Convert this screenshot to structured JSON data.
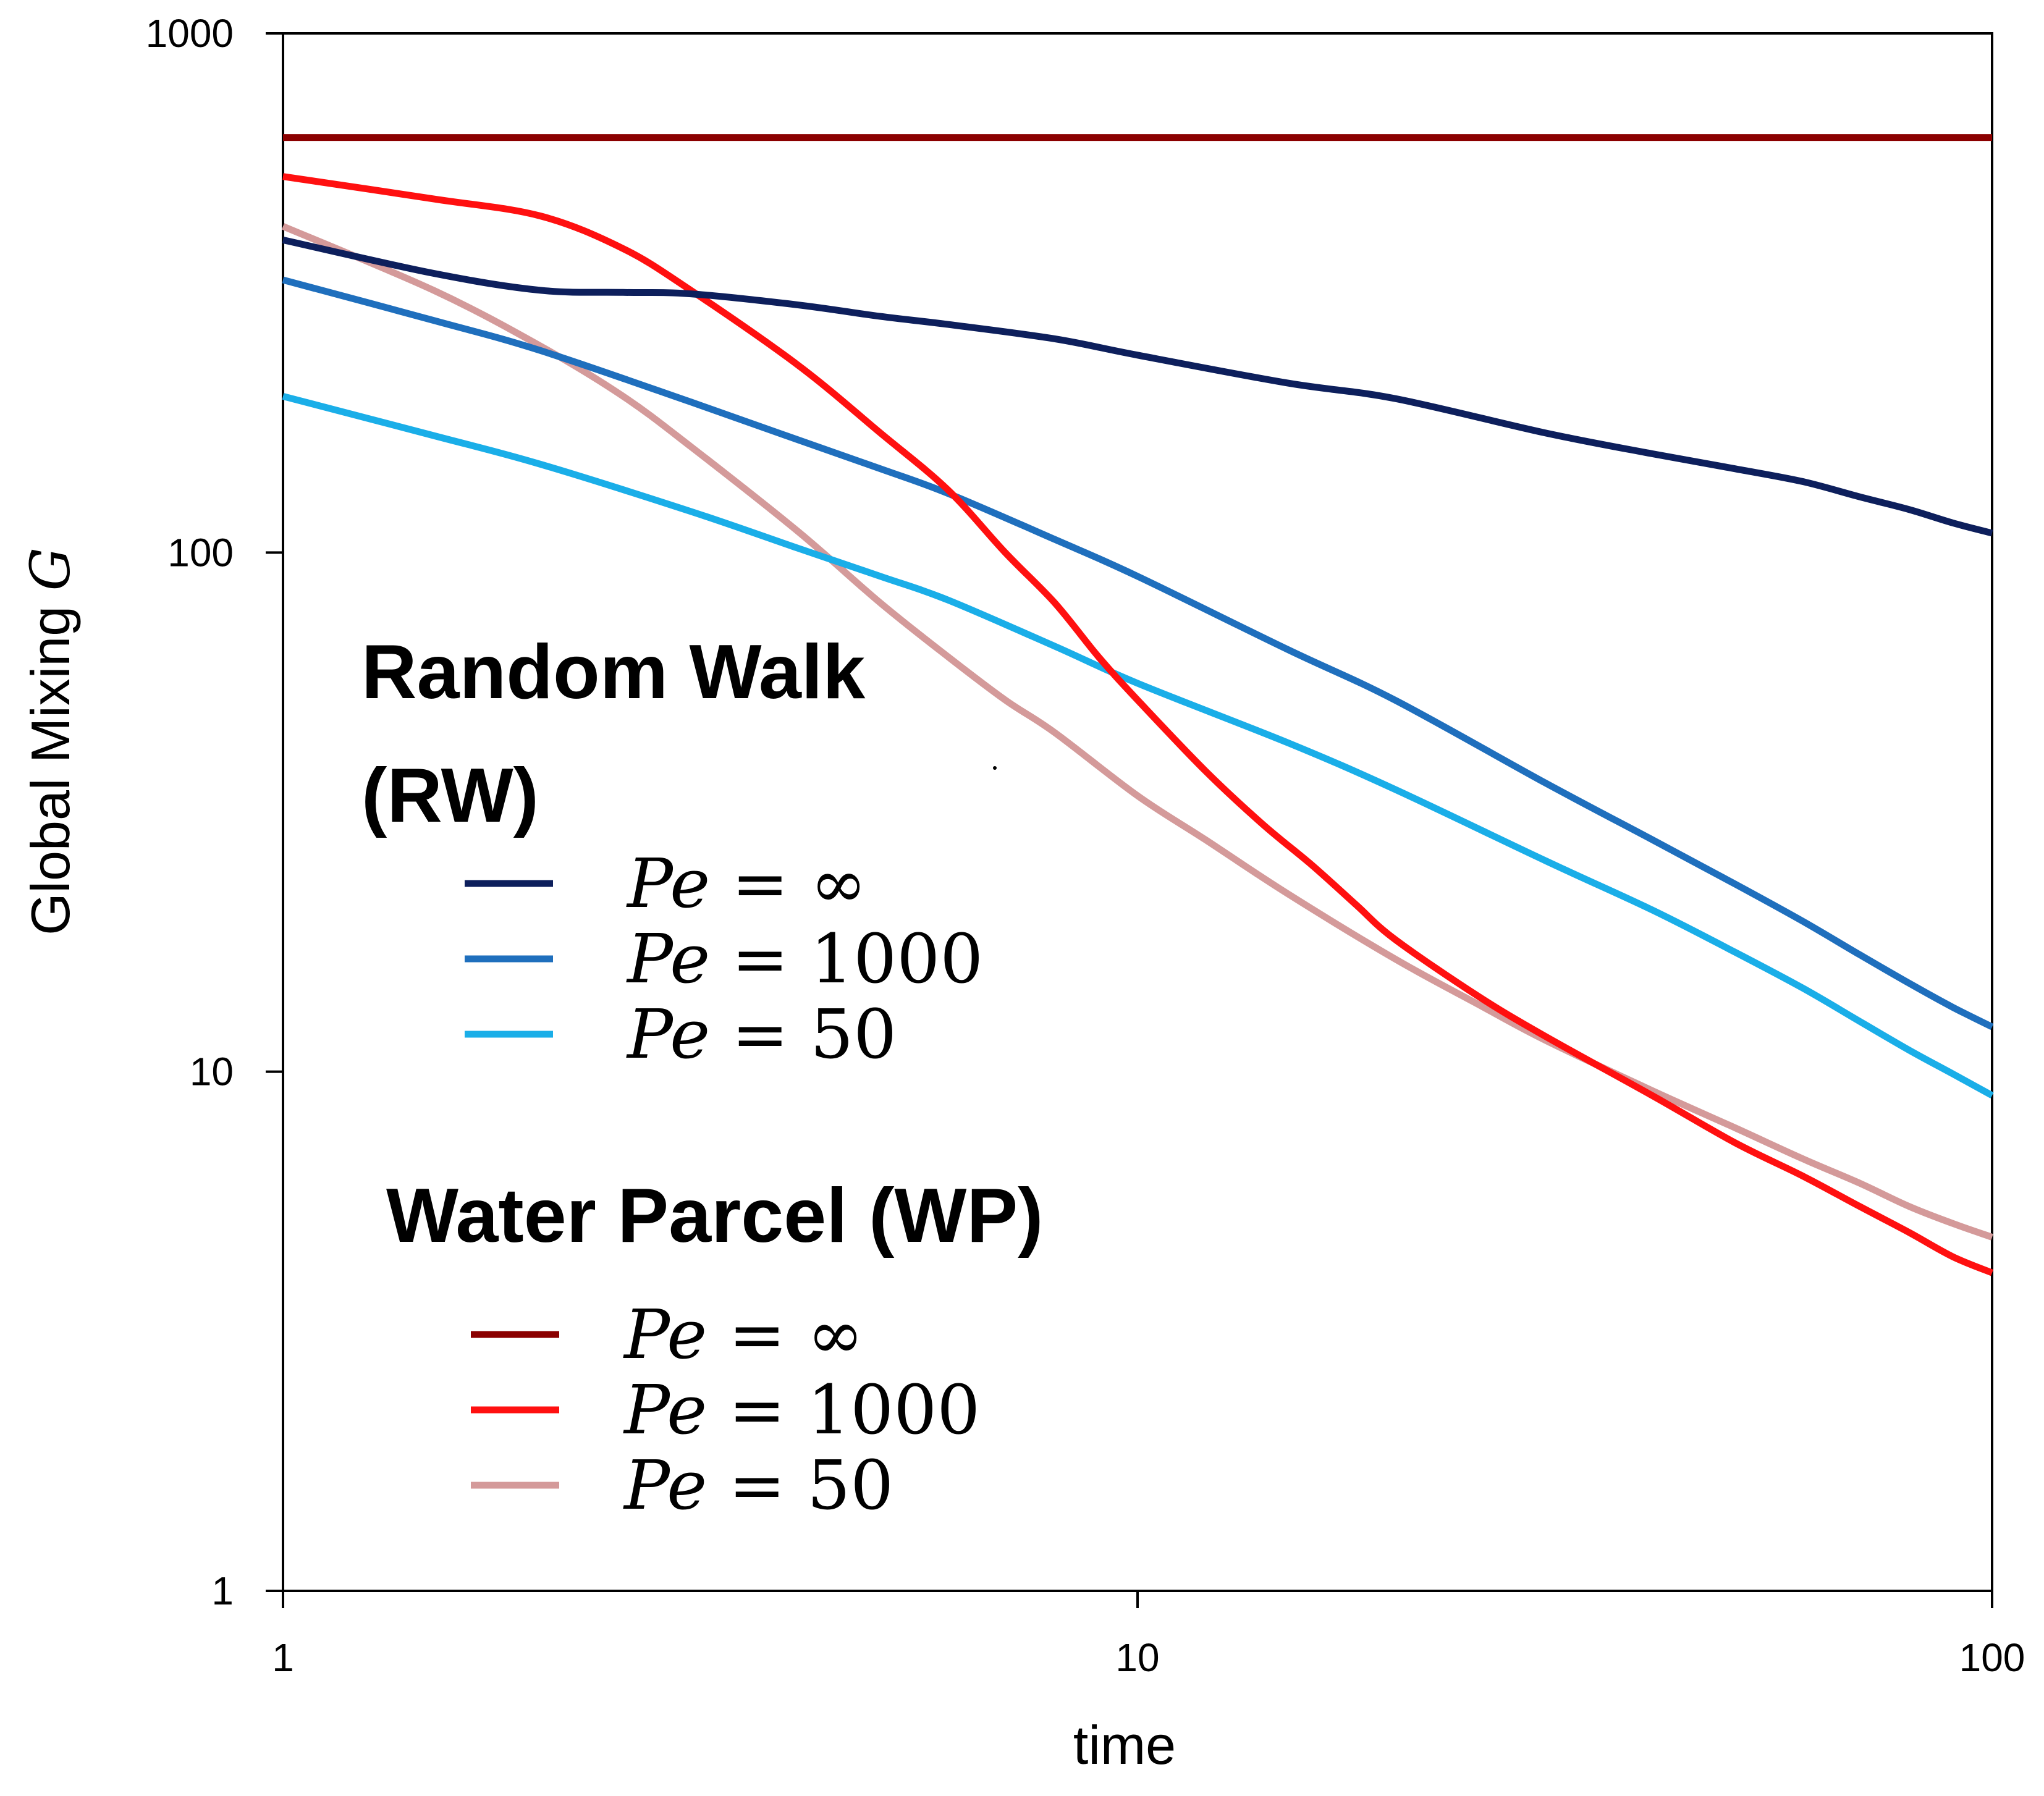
{
  "chart_data": {
    "type": "line",
    "xscale": "log",
    "yscale": "log",
    "xlabel": "time",
    "ylabel_text": "Global Mixing ",
    "ylabel_symbol": "G",
    "xlim": [
      1,
      100
    ],
    "ylim": [
      1,
      1000
    ],
    "x_ticks": [
      "1",
      "10",
      "100"
    ],
    "y_ticks": [
      "1",
      "10",
      "100",
      "1000"
    ],
    "legend_groups": [
      {
        "title_line1": "Random Walk",
        "title_line2": "(RW)",
        "entries": [
          {
            "var": "Pe",
            "eq": " = ",
            "value": "∞",
            "color": "#0d1f5c"
          },
          {
            "var": "Pe",
            "eq": " = ",
            "value": "1000",
            "color": "#1f6fbd"
          },
          {
            "var": "Pe",
            "eq": " = ",
            "value": "50",
            "color": "#1aaee8"
          }
        ]
      },
      {
        "title_line1": "Water Parcel (WP)",
        "entries": [
          {
            "var": "Pe",
            "eq": " = ",
            "value": "∞",
            "color": "#8b0000"
          },
          {
            "var": "Pe",
            "eq": " = ",
            "value": "1000",
            "color": "#ff1010"
          },
          {
            "var": "Pe",
            "eq": " = ",
            "value": "50",
            "color": "#d49a9a"
          }
        ]
      }
    ],
    "series": [
      {
        "name": "RW Pe=∞",
        "color": "#0d1f5c",
        "x": [
          1,
          1.5,
          2,
          2.5,
          3,
          4,
          5,
          6,
          8,
          10,
          15,
          20,
          30,
          40,
          50,
          60,
          70,
          80,
          90,
          100
        ],
        "y": [
          400,
          345,
          320,
          317,
          315,
          300,
          285,
          275,
          258,
          240,
          212,
          198,
          170,
          155,
          145,
          137,
          128,
          121,
          114,
          109
        ]
      },
      {
        "name": "RW Pe=1000",
        "color": "#1f6fbd",
        "x": [
          1,
          1.5,
          2,
          3,
          4,
          5,
          6,
          8,
          10,
          15,
          20,
          30,
          40,
          50,
          60,
          70,
          80,
          90,
          100
        ],
        "y": [
          335,
          280,
          245,
          195,
          165,
          145,
          130,
          106,
          90,
          65,
          52,
          36,
          28,
          23,
          19.5,
          16.8,
          14.8,
          13.3,
          12.2
        ]
      },
      {
        "name": "RW Pe=50",
        "color": "#1aaee8",
        "x": [
          1,
          1.5,
          2,
          3,
          4,
          5,
          6,
          8,
          10,
          15,
          20,
          30,
          40,
          50,
          60,
          70,
          80,
          90,
          100
        ],
        "y": [
          200,
          168,
          148,
          120,
          102,
          90,
          81,
          66,
          56,
          43,
          35,
          25.5,
          20.5,
          17,
          14.5,
          12.5,
          11,
          9.9,
          9
        ]
      },
      {
        "name": "WP Pe=∞",
        "color": "#8b0000",
        "x": [
          1,
          100
        ],
        "y": [
          630,
          630
        ]
      },
      {
        "name": "WP Pe=1000",
        "color": "#ff1010",
        "x": [
          1,
          1.5,
          2,
          2.5,
          3,
          4,
          5,
          6,
          7,
          8,
          9,
          10,
          12,
          14,
          16,
          18,
          20,
          25,
          30,
          40,
          50,
          60,
          70,
          80,
          90,
          100
        ],
        "y": [
          530,
          480,
          445,
          385,
          320,
          230,
          170,
          132,
          100,
          80,
          63,
          52,
          38,
          30,
          25,
          21,
          18,
          14,
          11.7,
          9,
          7.3,
          6.3,
          5.5,
          4.9,
          4.4,
          4.1
        ]
      },
      {
        "name": "WP Pe=50",
        "color": "#d49a9a",
        "x": [
          1,
          1.5,
          2,
          2.5,
          3,
          4,
          5,
          6,
          7,
          8,
          10,
          12,
          15,
          20,
          25,
          30,
          40,
          50,
          60,
          70,
          80,
          90,
          100
        ],
        "y": [
          425,
          320,
          250,
          200,
          160,
          110,
          80,
          63,
          52,
          45,
          34,
          28,
          22,
          16.5,
          13.5,
          11.5,
          9.2,
          7.8,
          6.8,
          6.1,
          5.5,
          5.1,
          4.8
        ]
      }
    ]
  }
}
